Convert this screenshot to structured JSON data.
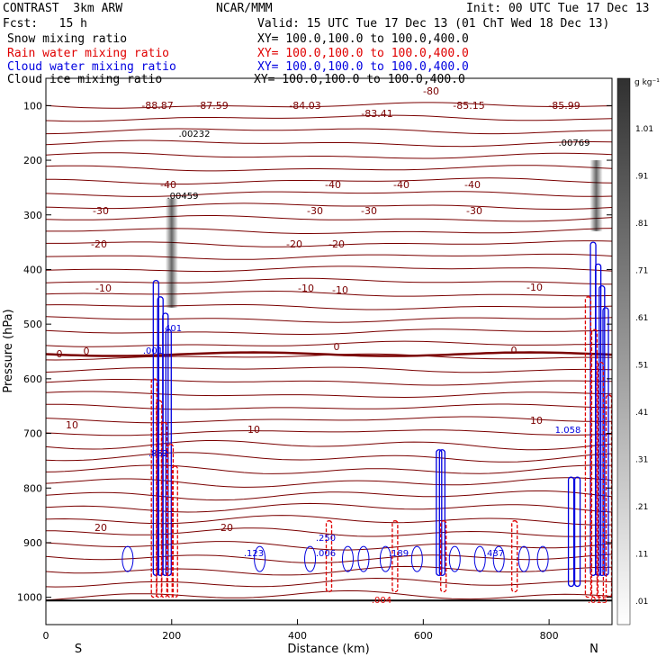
{
  "header": {
    "model": "CONTRAST  3km ARW",
    "org": "NCAR/MMM",
    "init": "Init: 00 UTC Tue 17 Dec 13",
    "fcst": "Fcst:   15 h",
    "valid": "Valid: 15 UTC Tue 17 Dec 13 (01 ChT Wed 18 Dec 13)",
    "fields": [
      {
        "name": "Snow mixing ratio",
        "xy": "XY= 100.0,100.0 to 100.0,400.0",
        "color": "#000000"
      },
      {
        "name": "Rain water mixing ratio",
        "xy": "XY= 100.0,100.0 to 100.0,400.0",
        "color": "#e00000"
      },
      {
        "name": "Cloud water mixing ratio",
        "xy": "XY= 100.0,100.0 to 100.0,400.0",
        "color": "#0000e0"
      },
      {
        "name": "Cloud ice mixing ratio",
        "xy": "XY= 100.0,100.0 to 100.0,400.0",
        "color": "#000000"
      }
    ]
  },
  "chart_data": {
    "type": "cross-section",
    "xlabel": "Distance (km)",
    "ylabel": "Pressure (hPa)",
    "xlim": [
      0,
      900
    ],
    "ylim": [
      1050,
      50
    ],
    "x_ticks": [
      0,
      200,
      400,
      600,
      800
    ],
    "y_ticks": [
      100,
      200,
      300,
      400,
      500,
      600,
      700,
      800,
      900,
      1000
    ],
    "end_labels": {
      "left": "S",
      "right": "N"
    },
    "colorbar": {
      "unit": "g kg⁻¹",
      "ticks": [
        "1.01",
        ".91",
        ".81",
        ".71",
        ".61",
        ".51",
        ".41",
        ".31",
        ".21",
        ".11",
        ".01"
      ]
    },
    "temperature_labels": [
      {
        "x": 40,
        "p": 535,
        "text": "-88.87"
      },
      {
        "x": 100,
        "p": 535,
        "text": "-87.59"
      },
      {
        "x": 200,
        "p": 535,
        "text": "-84.03"
      },
      {
        "x": 260,
        "p": 535,
        "text": "-83.41"
      },
      {
        "x": 345,
        "p": 535,
        "text": "-85.15"
      },
      {
        "x": 400,
        "p": 535,
        "text": "-85.99"
      },
      {
        "x": 325,
        "p": 535,
        "text": "-80"
      },
      {
        "x": 215,
        "p": 535,
        "text": "-40"
      },
      {
        "x": 270,
        "p": 535,
        "text": "-40"
      },
      {
        "x": 315,
        "p": 535,
        "text": "-40"
      },
      {
        "x": 370,
        "p": 535,
        "text": "-40"
      },
      {
        "x": 40,
        "p": 535,
        "text": "-30"
      },
      {
        "x": 210,
        "p": 535,
        "text": "-30"
      },
      {
        "x": 250,
        "p": 535,
        "text": "-30"
      },
      {
        "x": 365,
        "p": 535,
        "text": "-30"
      },
      {
        "x": 45,
        "p": 535,
        "text": "-20"
      },
      {
        "x": 190,
        "p": 535,
        "text": "-20"
      },
      {
        "x": 230,
        "p": 535,
        "text": "-20"
      },
      {
        "x": 60,
        "p": 535,
        "text": "-10"
      },
      {
        "x": 210,
        "p": 535,
        "text": "-10"
      },
      {
        "x": 240,
        "p": 535,
        "text": "-10"
      },
      {
        "x": 385,
        "p": 535,
        "text": "-10"
      },
      {
        "x": 10,
        "p": 535,
        "text": "0"
      },
      {
        "x": 30,
        "p": 535,
        "text": "0"
      },
      {
        "x": 235,
        "p": 535,
        "text": "0"
      },
      {
        "x": 370,
        "p": 535,
        "text": "0"
      },
      {
        "x": 20,
        "p": 535,
        "text": "10"
      },
      {
        "x": 170,
        "p": 535,
        "text": "10"
      },
      {
        "x": 385,
        "p": 535,
        "text": "10"
      },
      {
        "x": 45,
        "p": 535,
        "text": "20"
      },
      {
        "x": 155,
        "p": 535,
        "text": "20"
      }
    ],
    "max_labels": [
      {
        "text": ".00232"
      },
      {
        "text": ".00459"
      },
      {
        "text": ".00769"
      },
      {
        "text": "1.058"
      },
      {
        "text": ".862"
      },
      {
        "text": ".401"
      },
      {
        "text": ".001"
      },
      {
        "text": ".123"
      },
      {
        "text": ".250"
      },
      {
        "text": ".006"
      },
      {
        "text": ".189"
      },
      {
        "text": ".437"
      },
      {
        "text": ".004"
      },
      {
        "text": ".015"
      }
    ]
  }
}
